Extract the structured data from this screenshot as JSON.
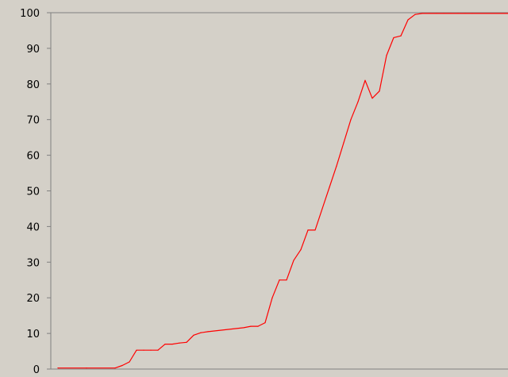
{
  "chart_data": {
    "type": "line",
    "title": "",
    "xlabel": "",
    "ylabel": "",
    "ylim": [
      0,
      100
    ],
    "xlim": [
      0,
      64
    ],
    "grid": false,
    "y_ticks": [
      "0",
      "10",
      "20",
      "30",
      "40",
      "50",
      "60",
      "70",
      "80",
      "90",
      "100"
    ],
    "series": [
      {
        "color": "#ff0000",
        "x": [
          1,
          5,
          9,
          10,
          11,
          12,
          13,
          14,
          15,
          16,
          17,
          18,
          19,
          20,
          21,
          22,
          27,
          28,
          29,
          30,
          31,
          32,
          33,
          34,
          35,
          36,
          37,
          38,
          39,
          40,
          41,
          42,
          43,
          44,
          45,
          46,
          47,
          48,
          49,
          50,
          51,
          52,
          53,
          54,
          55,
          56,
          57,
          58,
          59,
          64
        ],
        "values": [
          0.3,
          0.3,
          0.3,
          1,
          2,
          5.3,
          5.3,
          5.3,
          5.3,
          7,
          7,
          7.3,
          7.5,
          9.5,
          10.2,
          10.5,
          11.6,
          12,
          12,
          13,
          20,
          25,
          25,
          30.5,
          33.5,
          39,
          39,
          45,
          51,
          57,
          63.5,
          70,
          75,
          81,
          76,
          78,
          88,
          93,
          93.5,
          98,
          99.5,
          99.8,
          99.8,
          99.8,
          99.8,
          99.8,
          99.8,
          99.8,
          99.8,
          99.8
        ]
      }
    ]
  },
  "colors": {
    "background": "#d4d0c8",
    "axis": "#808080",
    "text": "#000000"
  }
}
